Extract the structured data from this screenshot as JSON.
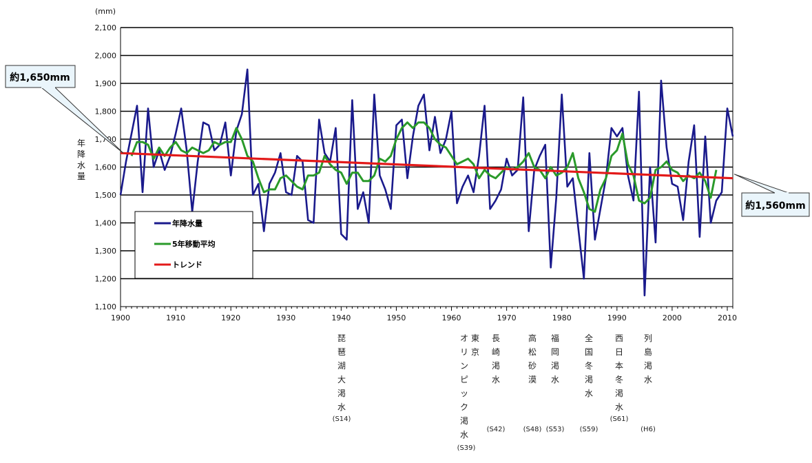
{
  "chart_data": {
    "type": "line",
    "ylabel": "年降水量",
    "yunit": "(mm)",
    "xlim": [
      1900,
      2011
    ],
    "ylim": [
      1100,
      2100
    ],
    "yticks": [
      1100,
      1200,
      1300,
      1400,
      1500,
      1600,
      1700,
      1800,
      1900,
      2000,
      2100
    ],
    "ytick_labels": [
      "1,100",
      "1,200",
      "1,300",
      "1,400",
      "1,500",
      "1,600",
      "1,700",
      "1,800",
      "1,900",
      "2,000",
      "2,100"
    ],
    "xticks": [
      1900,
      1910,
      1920,
      1930,
      1940,
      1950,
      1960,
      1970,
      1980,
      1990,
      2000,
      2010
    ],
    "xtick_labels": [
      "1900",
      "1910",
      "1920",
      "1930",
      "1940",
      "1950",
      "1960",
      "1970",
      "1980",
      "1990",
      "2000",
      "2010"
    ],
    "grid": true,
    "legend_position": "bottom-left",
    "series": [
      {
        "name": "年降水量",
        "color": "#1a1a8c",
        "x": [
          1900,
          1901,
          1902,
          1903,
          1904,
          1905,
          1906,
          1907,
          1908,
          1909,
          1910,
          1911,
          1912,
          1913,
          1914,
          1915,
          1916,
          1917,
          1918,
          1919,
          1920,
          1921,
          1922,
          1923,
          1924,
          1925,
          1926,
          1927,
          1928,
          1929,
          1930,
          1931,
          1932,
          1933,
          1934,
          1935,
          1936,
          1937,
          1938,
          1939,
          1940,
          1941,
          1942,
          1943,
          1944,
          1945,
          1946,
          1947,
          1948,
          1949,
          1950,
          1951,
          1952,
          1953,
          1954,
          1955,
          1956,
          1957,
          1958,
          1959,
          1960,
          1961,
          1962,
          1963,
          1964,
          1965,
          1966,
          1967,
          1968,
          1969,
          1970,
          1971,
          1972,
          1973,
          1974,
          1975,
          1976,
          1977,
          1978,
          1979,
          1980,
          1981,
          1982,
          1983,
          1984,
          1985,
          1986,
          1987,
          1988,
          1989,
          1990,
          1991,
          1992,
          1993,
          1994,
          1995,
          1996,
          1997,
          1998,
          1999,
          2000,
          2001,
          2002,
          2003,
          2004,
          2005,
          2006,
          2007,
          2008,
          2009,
          2010,
          2011
        ],
        "values": [
          1500,
          1620,
          1720,
          1820,
          1510,
          1810,
          1600,
          1660,
          1590,
          1640,
          1720,
          1810,
          1660,
          1440,
          1620,
          1760,
          1750,
          1660,
          1680,
          1760,
          1570,
          1730,
          1790,
          1950,
          1500,
          1540,
          1370,
          1540,
          1580,
          1650,
          1510,
          1500,
          1640,
          1620,
          1410,
          1400,
          1770,
          1650,
          1620,
          1740,
          1360,
          1340,
          1840,
          1450,
          1510,
          1400,
          1860,
          1570,
          1520,
          1450,
          1750,
          1770,
          1560,
          1710,
          1820,
          1860,
          1660,
          1780,
          1650,
          1700,
          1800,
          1470,
          1530,
          1570,
          1510,
          1640,
          1820,
          1450,
          1480,
          1520,
          1630,
          1570,
          1590,
          1850,
          1370,
          1590,
          1640,
          1680,
          1240,
          1490,
          1860,
          1530,
          1560,
          1380,
          1200,
          1650,
          1340,
          1450,
          1560,
          1740,
          1710,
          1740,
          1570,
          1480,
          1870,
          1140,
          1600,
          1330,
          1910,
          1670,
          1540,
          1530,
          1410,
          1620,
          1750,
          1350,
          1710,
          1400,
          1480,
          1510,
          1810,
          1710
        ]
      },
      {
        "name": "5年移動平均",
        "color": "#2a9a2a",
        "x": [
          1902,
          1903,
          1904,
          1905,
          1906,
          1907,
          1908,
          1909,
          1910,
          1911,
          1912,
          1913,
          1914,
          1915,
          1916,
          1917,
          1918,
          1919,
          1920,
          1921,
          1922,
          1923,
          1924,
          1925,
          1926,
          1927,
          1928,
          1929,
          1930,
          1931,
          1932,
          1933,
          1934,
          1935,
          1936,
          1937,
          1938,
          1939,
          1940,
          1941,
          1942,
          1943,
          1944,
          1945,
          1946,
          1947,
          1948,
          1949,
          1950,
          1951,
          1952,
          1953,
          1954,
          1955,
          1956,
          1957,
          1958,
          1959,
          1960,
          1961,
          1962,
          1963,
          1964,
          1965,
          1966,
          1967,
          1968,
          1969,
          1970,
          1971,
          1972,
          1973,
          1974,
          1975,
          1976,
          1977,
          1978,
          1979,
          1980,
          1981,
          1982,
          1983,
          1984,
          1985,
          1986,
          1987,
          1988,
          1989,
          1990,
          1991,
          1992,
          1993,
          1994,
          1995,
          1996,
          1997,
          1998,
          1999,
          2000,
          2001,
          2002,
          2003,
          2004,
          2005,
          2006,
          2007,
          2008
        ],
        "values": [
          1640,
          1690,
          1690,
          1680,
          1630,
          1670,
          1640,
          1670,
          1690,
          1660,
          1650,
          1670,
          1660,
          1650,
          1660,
          1690,
          1680,
          1690,
          1690,
          1740,
          1700,
          1640,
          1620,
          1560,
          1510,
          1520,
          1520,
          1560,
          1570,
          1550,
          1530,
          1520,
          1570,
          1570,
          1580,
          1640,
          1610,
          1590,
          1580,
          1540,
          1580,
          1580,
          1550,
          1550,
          1570,
          1630,
          1620,
          1640,
          1700,
          1740,
          1760,
          1740,
          1760,
          1760,
          1740,
          1700,
          1680,
          1670,
          1640,
          1610,
          1620,
          1630,
          1610,
          1560,
          1590,
          1570,
          1560,
          1580,
          1600,
          1590,
          1600,
          1620,
          1650,
          1600,
          1590,
          1560,
          1600,
          1570,
          1580,
          1600,
          1650,
          1560,
          1510,
          1450,
          1440,
          1520,
          1560,
          1640,
          1660,
          1720,
          1610,
          1570,
          1480,
          1470,
          1490,
          1590,
          1600,
          1620,
          1590,
          1580,
          1550,
          1570,
          1560,
          1580,
          1550,
          1490,
          1590
        ]
      },
      {
        "name": "トレンド",
        "color": "#e31a1a",
        "x": [
          1900,
          2011
        ],
        "values": [
          1650,
          1560
        ]
      }
    ],
    "annotations": [
      {
        "text": "約1,650mm",
        "x": 1900,
        "y": 1650,
        "side": "left"
      },
      {
        "text": "約1,560mm",
        "x": 2011,
        "y": 1560,
        "side": "right"
      }
    ],
    "events": [
      {
        "year": 1939,
        "label": "琵琶湖大渇水",
        "code": "(S14)"
      },
      {
        "year": 1964,
        "label": "東京オリンピック渇水",
        "code": "(S39)"
      },
      {
        "year": 1967,
        "label": "長崎渇水",
        "code": "(S42)"
      },
      {
        "year": 1973,
        "label": "高松砂漠",
        "code": "(S48)"
      },
      {
        "year": 1978,
        "label": "福岡渇水",
        "code": "(S53)"
      },
      {
        "year": 1984,
        "label": "全国冬渇水",
        "code": "(S59)"
      },
      {
        "year": 1986,
        "label": "西日本冬渇水",
        "code": "(S61)"
      },
      {
        "year": 1994,
        "label": "列島渇水",
        "code": "(H6)"
      }
    ]
  }
}
